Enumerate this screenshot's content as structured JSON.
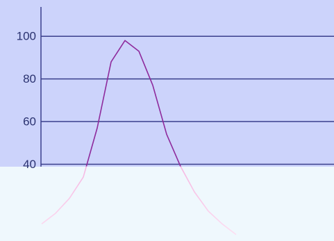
{
  "chart_data": {
    "type": "line",
    "categories": [
      null,
      null,
      null,
      null,
      null,
      null,
      null,
      null,
      null,
      null,
      null,
      null,
      null,
      null,
      null
    ],
    "series": [
      {
        "color": "#8e2a9c",
        "values": [
          12,
          17,
          24,
          34,
          57,
          88,
          98,
          93,
          77,
          54,
          39,
          27,
          18,
          12,
          7
        ]
      }
    ],
    "ylim": [
      4,
      117
    ],
    "yticks": [
      40,
      60,
      80,
      100
    ],
    "grid": true
  }
}
